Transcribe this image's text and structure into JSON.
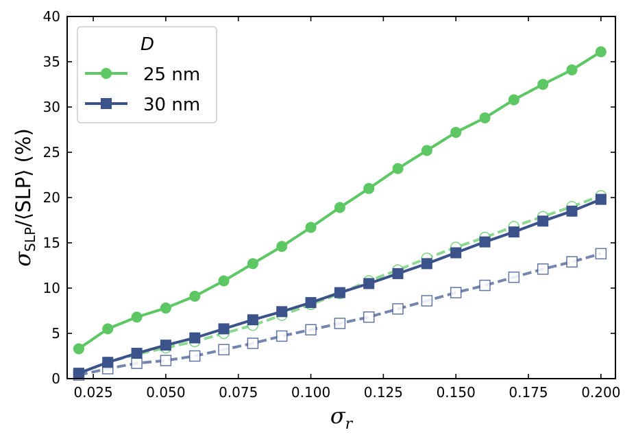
{
  "chart_data": {
    "type": "line",
    "title": "",
    "xlabel_symbol": "σ",
    "xlabel_sub": "r",
    "ylabel_symbol": "σ",
    "ylabel_sub": "SLP",
    "ylabel_rest": "/⟨SLP⟩ (%)",
    "xlim": [
      0.016,
      0.205
    ],
    "ylim": [
      0,
      40
    ],
    "xticks": [
      0.025,
      0.05,
      0.075,
      0.1,
      0.125,
      0.15,
      0.175,
      0.2
    ],
    "xtick_labels": [
      "0.025",
      "0.050",
      "0.075",
      "0.100",
      "0.125",
      "0.150",
      "0.175",
      "0.200"
    ],
    "yticks": [
      0,
      5,
      10,
      15,
      20,
      25,
      30,
      35,
      40
    ],
    "ytick_labels": [
      "0",
      "5",
      "10",
      "15",
      "20",
      "25",
      "30",
      "35",
      "40"
    ],
    "x": [
      0.02,
      0.03,
      0.04,
      0.05,
      0.06,
      0.07,
      0.08,
      0.09,
      0.1,
      0.11,
      0.12,
      0.13,
      0.14,
      0.15,
      0.16,
      0.17,
      0.18,
      0.19,
      0.2
    ],
    "legend_title": "D",
    "legend_position": "top-left",
    "series": [
      {
        "name": "25 nm",
        "color": "#5dc863",
        "marker": "circle",
        "filled": true,
        "dashed": false,
        "in_legend": true,
        "values": [
          3.3,
          5.5,
          6.8,
          7.8,
          9.1,
          10.8,
          12.7,
          14.6,
          16.7,
          18.9,
          21.0,
          23.2,
          25.2,
          27.2,
          28.8,
          30.8,
          32.5,
          34.1,
          36.1
        ]
      },
      {
        "name": "30 nm",
        "color": "#3b528b",
        "marker": "square",
        "filled": true,
        "dashed": false,
        "in_legend": true,
        "values": [
          0.6,
          1.8,
          2.8,
          3.7,
          4.5,
          5.5,
          6.5,
          7.4,
          8.4,
          9.5,
          10.5,
          11.6,
          12.7,
          13.9,
          15.1,
          16.2,
          17.4,
          18.5,
          19.8
        ]
      },
      {
        "name": "25 nm (dashed)",
        "color": "#5dc863",
        "marker": "circle",
        "filled": false,
        "dashed": true,
        "in_legend": false,
        "values": [
          0.6,
          1.8,
          2.7,
          3.4,
          4.1,
          5.0,
          5.9,
          7.0,
          8.2,
          9.4,
          10.8,
          12.0,
          13.3,
          14.5,
          15.6,
          16.8,
          17.9,
          19.0,
          20.2
        ]
      },
      {
        "name": "30 nm (dashed)",
        "color": "#3b528b",
        "marker": "square",
        "filled": false,
        "dashed": true,
        "in_legend": false,
        "values": [
          0.4,
          1.1,
          1.7,
          2.0,
          2.5,
          3.2,
          3.9,
          4.7,
          5.4,
          6.1,
          6.8,
          7.7,
          8.6,
          9.5,
          10.3,
          11.2,
          12.1,
          12.9,
          13.8
        ]
      }
    ]
  }
}
